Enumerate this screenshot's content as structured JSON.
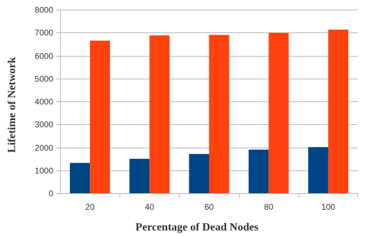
{
  "chart_data": {
    "type": "bar",
    "title": "",
    "xlabel": "Percentage of Dead Nodes",
    "ylabel": "Lifetime of Network",
    "categories": [
      "20",
      "40",
      "60",
      "80",
      "100"
    ],
    "series": [
      {
        "values": [
          1320,
          1500,
          1710,
          1900,
          2010
        ],
        "color": "#004586"
      },
      {
        "values": [
          6650,
          6880,
          6900,
          6990,
          7130
        ],
        "color": "#ff420e"
      }
    ],
    "ylim": [
      0,
      8000
    ],
    "yticks": [
      0,
      1000,
      2000,
      3000,
      4000,
      5000,
      6000,
      7000,
      8000
    ],
    "grid": true,
    "legend": "none"
  }
}
